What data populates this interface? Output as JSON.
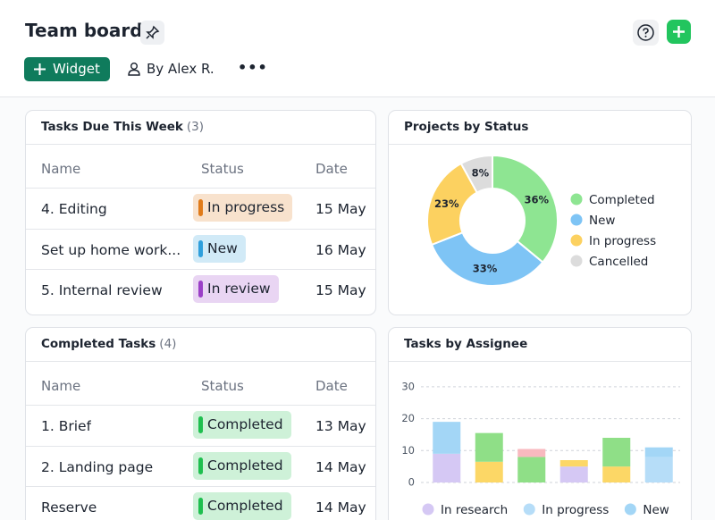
{
  "header": {
    "title": "Team board",
    "widget_button": "Widget",
    "owner": "By Alex R."
  },
  "tasks_due": {
    "title": "Tasks Due This Week",
    "count": "(3)",
    "columns": [
      "Name",
      "Status",
      "Date"
    ],
    "rows": [
      {
        "name": "4. Editing",
        "status": "In progress",
        "date": "15 May",
        "color": "#e07b1a"
      },
      {
        "name": "Set up home work...",
        "status": "New",
        "date": "16 May",
        "color": "#2f9fdc"
      },
      {
        "name": "5. Internal review",
        "status": "In review",
        "date": "15 May",
        "color": "#9b3fc7"
      }
    ]
  },
  "completed_tasks": {
    "title": "Completed Tasks",
    "count": "(4)",
    "columns": [
      "Name",
      "Status",
      "Date"
    ],
    "rows": [
      {
        "name": "1. Brief",
        "status": "Completed",
        "date": "13 May",
        "color": "#1fbf4f"
      },
      {
        "name": "2. Landing page",
        "status": "Completed",
        "date": "14 May",
        "color": "#1fbf4f"
      },
      {
        "name": "Reserve",
        "status": "Completed",
        "date": "14 May",
        "color": "#1fbf4f"
      }
    ]
  },
  "chart_data": [
    {
      "type": "donut",
      "title": "Projects by Status",
      "categories": [
        "Completed",
        "New",
        "In progress",
        "Cancelled"
      ],
      "values": [
        36,
        33,
        23,
        8
      ],
      "value_labels": [
        "36%",
        "33%",
        "23%",
        "8%"
      ],
      "colors": [
        "#8ee592",
        "#7ec4f5",
        "#fcd160",
        "#dcdcdc"
      ]
    },
    {
      "type": "stacked_bar",
      "title": "Tasks by Assignee",
      "categories": [
        null,
        null,
        null,
        null,
        null,
        null
      ],
      "series": [
        {
          "name": "In research",
          "color": "#d5c8f4",
          "values": [
            9,
            null,
            null,
            5,
            null,
            null
          ]
        },
        {
          "name": "In progress",
          "color": "#b6ddf8",
          "values": [
            null,
            null,
            null,
            null,
            null,
            8
          ]
        },
        {
          "color": "#fcd766",
          "values": [
            null,
            6.5,
            null,
            2,
            5,
            null
          ]
        },
        {
          "color": "#8fdf87",
          "values": [
            null,
            9,
            8,
            null,
            9,
            null
          ]
        },
        {
          "color": "#f8b9bf",
          "values": [
            null,
            null,
            2.5,
            null,
            null,
            null
          ]
        },
        {
          "name": "New",
          "color": "#a3d6f6",
          "values": [
            10,
            null,
            null,
            null,
            null,
            3
          ]
        }
      ],
      "ylim": [
        0,
        35
      ],
      "yticks": [
        0,
        10,
        20,
        30
      ],
      "grid": true
    }
  ]
}
